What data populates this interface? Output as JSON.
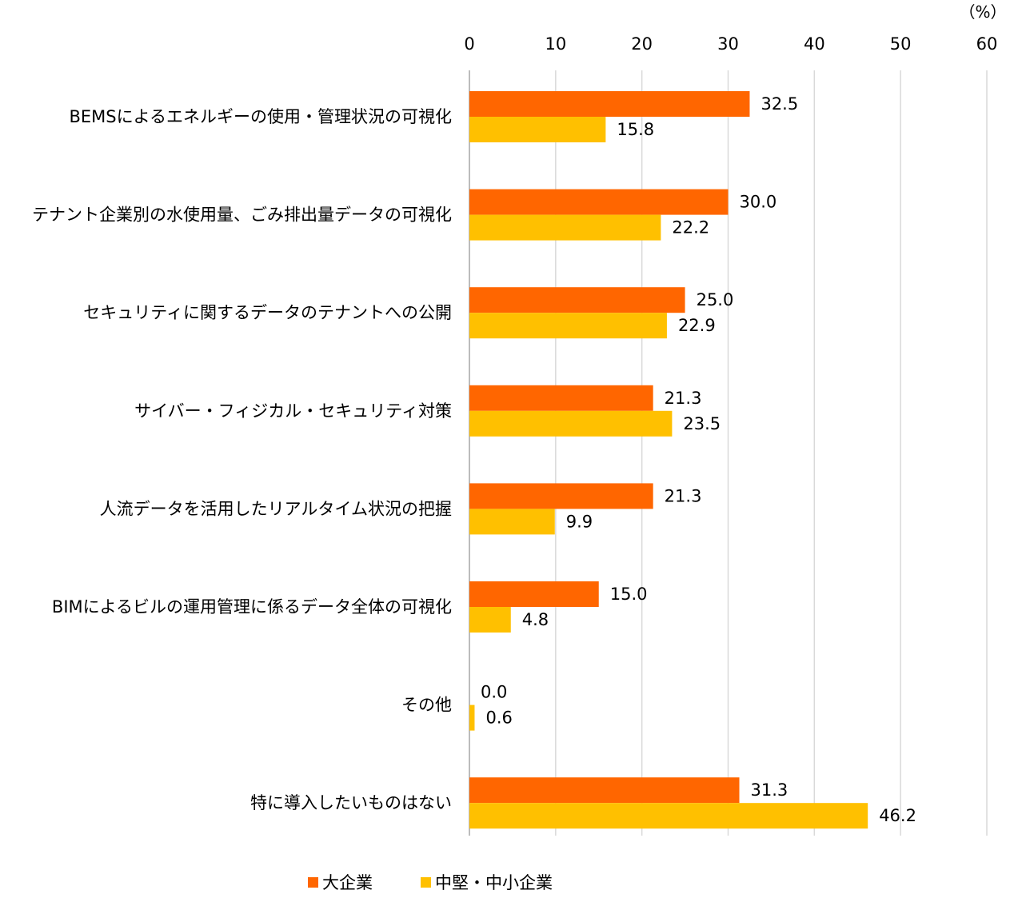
{
  "chart_data": {
    "type": "bar",
    "orientation": "horizontal",
    "unit_label": "（%）",
    "categories": [
      "BEMSによるエネルギーの使用・管理状況の可視化",
      "テナント企業別の水使用量、ごみ排出量データの可視化",
      "セキュリティに関するデータのテナントへの公開",
      "サイバー・フィジカル・セキュリティ対策",
      "人流データを活用したリアルタイム状況の把握",
      "BIMによるビルの運用管理に係るデータ全体の可視化",
      "その他",
      "特に導入したいものはない"
    ],
    "series": [
      {
        "name": "大企業",
        "color": "#FF6600",
        "values": [
          32.5,
          30.0,
          25.0,
          21.3,
          21.3,
          15.0,
          0.0,
          31.3
        ],
        "labels": [
          "32.5",
          "30.0",
          "25.0",
          "21.3",
          "21.3",
          "15.0",
          "0.0",
          "31.3"
        ]
      },
      {
        "name": "中堅・中小企業",
        "color": "#FFC000",
        "values": [
          15.8,
          22.2,
          22.9,
          23.5,
          9.9,
          4.8,
          0.6,
          46.2
        ],
        "labels": [
          "15.8",
          "22.2",
          "22.9",
          "23.5",
          "9.9",
          "4.8",
          "0.6",
          "46.2"
        ]
      }
    ],
    "xlim": [
      0,
      60
    ],
    "ticks": [
      "0",
      "10",
      "20",
      "30",
      "40",
      "50",
      "60"
    ],
    "tick_values": [
      0,
      10,
      20,
      30,
      40,
      50,
      60
    ],
    "grid": true,
    "axis_position": "top",
    "legend_position": "bottom"
  }
}
